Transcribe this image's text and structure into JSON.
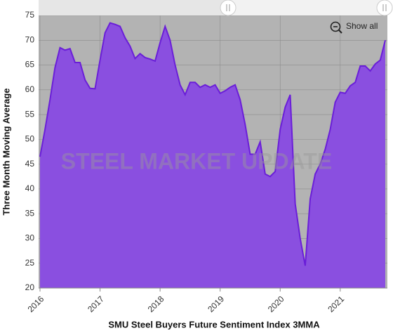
{
  "chart_data": {
    "type": "area",
    "title": "SMU Steel Buyers Future Sentiment Index 3MMA",
    "y_label": "Three Month Moving Average",
    "button": "Show all",
    "watermark": "STEEL MARKET UPDATE",
    "color": "#8a4fe0",
    "line_color": "#6a1ed8",
    "grid": true,
    "categories": [
      "2016",
      null,
      null,
      null,
      null,
      null,
      null,
      null,
      null,
      null,
      null,
      null,
      "2017",
      null,
      null,
      null,
      null,
      null,
      null,
      null,
      null,
      null,
      null,
      null,
      "2018",
      null,
      null,
      null,
      null,
      null,
      null,
      null,
      null,
      null,
      null,
      null,
      "2019",
      null,
      null,
      null,
      null,
      null,
      null,
      null,
      null,
      null,
      null,
      null,
      "2020",
      null,
      null,
      null,
      null,
      null,
      null,
      null,
      null,
      null,
      null,
      null,
      "2021",
      null,
      null,
      null,
      null,
      null,
      null,
      null,
      null,
      null
    ],
    "values": [
      46.5,
      52,
      58,
      64.5,
      68.5,
      68,
      68.3,
      65.5,
      65.5,
      62,
      60.3,
      60.2,
      66,
      71.5,
      73.5,
      73.2,
      72.8,
      70.5,
      68.8,
      66.3,
      67.3,
      66.5,
      66.2,
      65.8,
      69.5,
      72.8,
      70,
      65,
      61,
      59,
      61.5,
      61.5,
      60.5,
      61,
      60.5,
      61,
      59.3,
      59.8,
      60.5,
      61,
      58,
      53,
      47,
      47,
      49.5,
      43,
      42.5,
      43.5,
      52,
      56.5,
      59,
      37,
      30,
      24.5,
      38,
      43,
      45,
      48,
      52,
      57.5,
      59.5,
      59.3,
      60.8,
      61.5,
      64.8,
      64.8,
      63.8,
      65.2,
      66,
      70
    ],
    "ylim": [
      20,
      75
    ],
    "yticks": [
      20,
      25,
      30,
      35,
      40,
      45,
      50,
      55,
      60,
      65,
      70,
      75
    ]
  }
}
